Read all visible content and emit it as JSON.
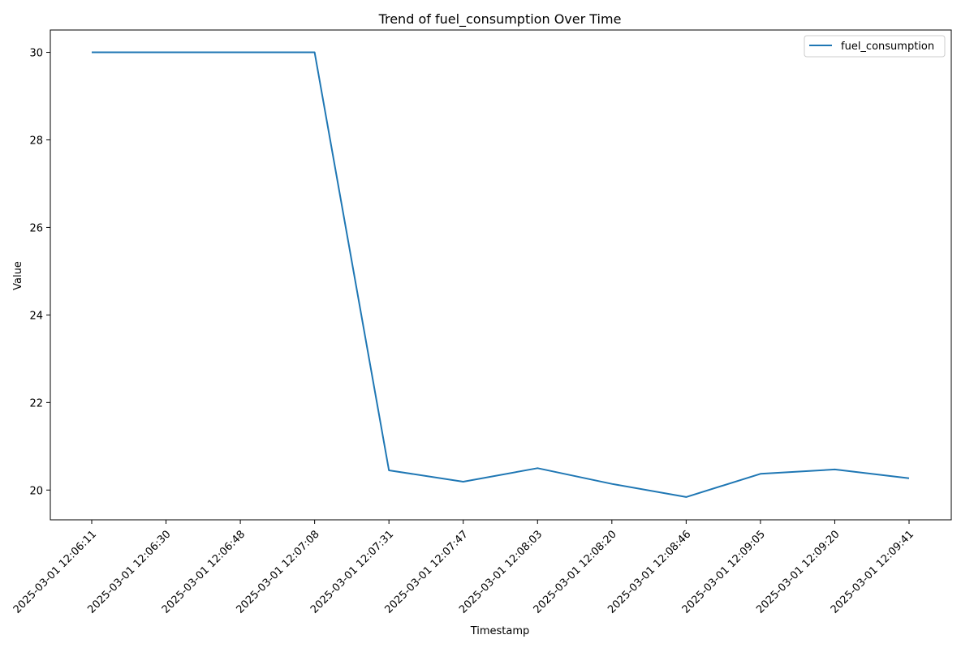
{
  "chart_data": {
    "type": "line",
    "title": "Trend of fuel_consumption Over Time",
    "xlabel": "Timestamp",
    "ylabel": "Value",
    "categories": [
      "2025-03-01 12:06:11",
      "2025-03-01 12:06:30",
      "2025-03-01 12:06:48",
      "2025-03-01 12:07:08",
      "2025-03-01 12:07:31",
      "2025-03-01 12:07:47",
      "2025-03-01 12:08:03",
      "2025-03-01 12:08:20",
      "2025-03-01 12:08:46",
      "2025-03-01 12:09:05",
      "2025-03-01 12:09:20",
      "2025-03-01 12:09:41"
    ],
    "series": [
      {
        "name": "fuel_consumption",
        "color": "#1f77b4",
        "values": [
          30.0,
          30.0,
          30.0,
          30.0,
          20.45,
          20.19,
          20.5,
          20.14,
          19.84,
          20.37,
          20.47,
          20.27
        ]
      }
    ],
    "y_ticks": [
      20,
      22,
      24,
      26,
      28,
      30
    ],
    "ylim": [
      19.32,
      30.51
    ],
    "grid": false,
    "legend_position": "upper right"
  }
}
